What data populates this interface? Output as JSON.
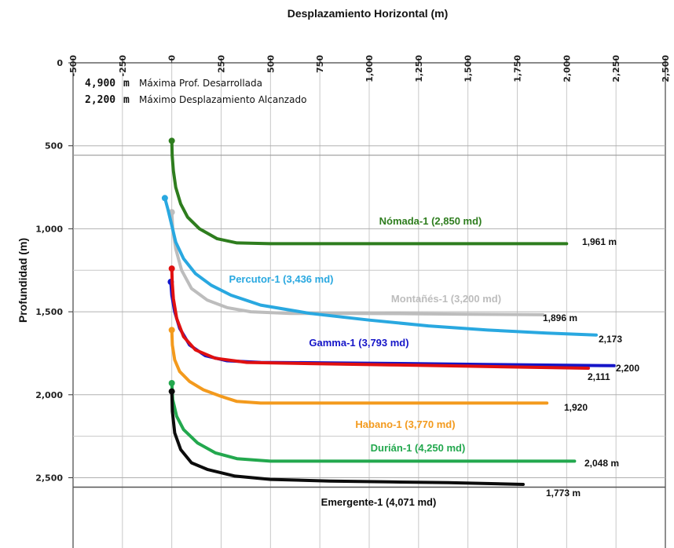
{
  "chart_data": {
    "type": "line",
    "title": "",
    "xlabel": "Desplazamiento Horizontal (m)",
    "ylabel": "Profundidad (m)",
    "xlim": [
      -500,
      2500
    ],
    "ylim": [
      0,
      2700
    ],
    "y_inverted": true,
    "x_ticks": [
      "-500",
      "-250",
      "0",
      "250",
      "500",
      "750",
      "1,000",
      "1,250",
      "1,500",
      "1,750",
      "2,000",
      "2,250",
      "2,500"
    ],
    "y_ticks": [
      "0",
      "500",
      "1,000",
      "1,500",
      "2,000",
      "2,500"
    ],
    "grid": true,
    "annotations": [
      {
        "value": "4,900",
        "unit": "m",
        "text": "Máxima Prof. Desarrollada"
      },
      {
        "value": "2,200",
        "unit": "m",
        "text": "Máximo Desplazamiento Alcanzado"
      }
    ],
    "series": [
      {
        "name": "Nómada-1 (2,850 md)",
        "color": "#2e7d1e",
        "end_label": "1,961 m",
        "points": [
          [
            0,
            470
          ],
          [
            2,
            560
          ],
          [
            8,
            650
          ],
          [
            20,
            750
          ],
          [
            45,
            850
          ],
          [
            80,
            930
          ],
          [
            140,
            1000
          ],
          [
            230,
            1060
          ],
          [
            330,
            1085
          ],
          [
            500,
            1090
          ],
          [
            1000,
            1090
          ],
          [
            1500,
            1090
          ],
          [
            2000,
            1090
          ]
        ]
      },
      {
        "name": "Percutor-1 (3,436 md)",
        "color": "#29a8e0",
        "end_label": "2,173",
        "points": [
          [
            -35,
            815
          ],
          [
            -20,
            880
          ],
          [
            0,
            980
          ],
          [
            20,
            1080
          ],
          [
            60,
            1180
          ],
          [
            120,
            1270
          ],
          [
            200,
            1340
          ],
          [
            300,
            1400
          ],
          [
            450,
            1460
          ],
          [
            700,
            1510
          ],
          [
            1000,
            1550
          ],
          [
            1300,
            1585
          ],
          [
            1600,
            1610
          ],
          [
            1900,
            1628
          ],
          [
            2150,
            1640
          ]
        ]
      },
      {
        "name": "Montañés-1 (3,200 md)",
        "color": "#bdbdbd",
        "end_label": "1,896 m",
        "points": [
          [
            0,
            900
          ],
          [
            5,
            1000
          ],
          [
            20,
            1120
          ],
          [
            50,
            1250
          ],
          [
            100,
            1360
          ],
          [
            180,
            1430
          ],
          [
            280,
            1475
          ],
          [
            400,
            1500
          ],
          [
            600,
            1510
          ],
          [
            900,
            1510
          ],
          [
            1200,
            1512
          ],
          [
            1500,
            1515
          ],
          [
            1880,
            1518
          ]
        ]
      },
      {
        "name": "Gamma-1 (3,793 md)",
        "color": "#1515c8",
        "end_label": "2,200",
        "points": [
          [
            -5,
            1320
          ],
          [
            0,
            1400
          ],
          [
            15,
            1500
          ],
          [
            40,
            1600
          ],
          [
            90,
            1700
          ],
          [
            170,
            1765
          ],
          [
            280,
            1795
          ],
          [
            450,
            1805
          ],
          [
            800,
            1808
          ],
          [
            1200,
            1812
          ],
          [
            1600,
            1818
          ],
          [
            2000,
            1822
          ],
          [
            2240,
            1825
          ]
        ]
      },
      {
        "name": "Gamma-1 red",
        "color": "#e01010",
        "end_label": "2,111",
        "points": [
          [
            0,
            1240
          ],
          [
            2,
            1320
          ],
          [
            8,
            1420
          ],
          [
            25,
            1540
          ],
          [
            60,
            1650
          ],
          [
            120,
            1730
          ],
          [
            220,
            1780
          ],
          [
            380,
            1805
          ],
          [
            700,
            1812
          ],
          [
            1100,
            1820
          ],
          [
            1500,
            1828
          ],
          [
            1900,
            1836
          ],
          [
            2110,
            1840
          ]
        ]
      },
      {
        "name": "Habano-1 (3,770 md)",
        "color": "#f39a1d",
        "end_label": "1,920",
        "points": [
          [
            0,
            1610
          ],
          [
            3,
            1700
          ],
          [
            15,
            1790
          ],
          [
            40,
            1860
          ],
          [
            90,
            1920
          ],
          [
            160,
            1970
          ],
          [
            250,
            2010
          ],
          [
            330,
            2040
          ],
          [
            450,
            2050
          ],
          [
            900,
            2050
          ],
          [
            1400,
            2050
          ],
          [
            1900,
            2050
          ]
        ]
      },
      {
        "name": "Durián-1 (4,250 md)",
        "color": "#23a84e",
        "end_label": "2,048 m",
        "points": [
          [
            0,
            1930
          ],
          [
            5,
            2030
          ],
          [
            25,
            2130
          ],
          [
            60,
            2210
          ],
          [
            130,
            2290
          ],
          [
            220,
            2350
          ],
          [
            330,
            2385
          ],
          [
            500,
            2400
          ],
          [
            1000,
            2400
          ],
          [
            1500,
            2400
          ],
          [
            2040,
            2400
          ]
        ]
      },
      {
        "name": "Emergente-1 (4,071 md)",
        "color": "#0c0c0c",
        "end_label": "1,773 m",
        "points": [
          [
            0,
            1980
          ],
          [
            3,
            2100
          ],
          [
            15,
            2230
          ],
          [
            45,
            2330
          ],
          [
            100,
            2410
          ],
          [
            180,
            2450
          ],
          [
            320,
            2490
          ],
          [
            500,
            2510
          ],
          [
            800,
            2520
          ],
          [
            1100,
            2525
          ],
          [
            1400,
            2530
          ],
          [
            1780,
            2540
          ]
        ]
      }
    ],
    "series_labels": [
      {
        "text": "Nómada-1 (2,850 md)",
        "color": "#2e7d1e"
      },
      {
        "text": "Percutor-1 (3,436 md)",
        "color": "#29a8e0"
      },
      {
        "text": "Montañés-1 (3,200 md)",
        "color": "#bdbdbd"
      },
      {
        "text": "Gamma-1 (3,793 md)",
        "color": "#1515c8"
      },
      {
        "text": "Habano-1 (3,770 md)",
        "color": "#f39a1d"
      },
      {
        "text": "Durián-1 (4,250 md)",
        "color": "#23a84e"
      },
      {
        "text": "Emergente-1 (4,071 md)",
        "color": "#0c0c0c"
      }
    ]
  }
}
